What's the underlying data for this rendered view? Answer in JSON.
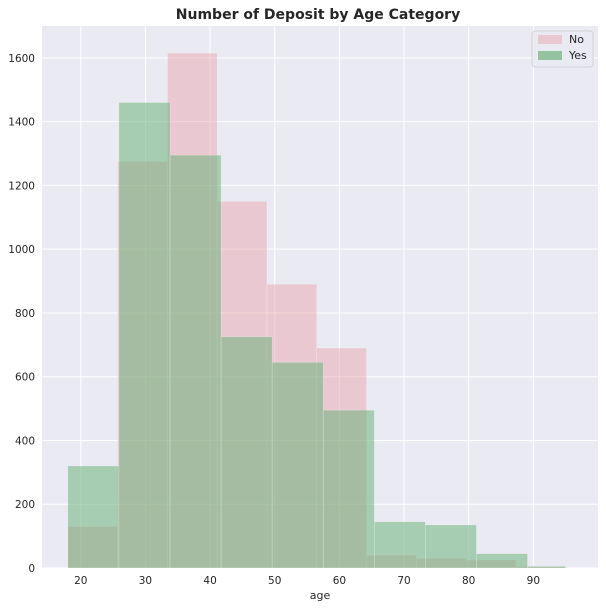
{
  "colors": {
    "background": "#eaeaf2",
    "grid": "#ffffff",
    "no": "#e8a0a8",
    "yes": "#6db27b",
    "text": "#262626"
  },
  "chart_data": {
    "type": "histogram",
    "title": "Number of Deposit by Age Category",
    "xlabel": "age",
    "ylabel": "",
    "xlim": [
      14,
      100
    ],
    "ylim": [
      0,
      1700
    ],
    "grid": true,
    "legend_position": "top-right",
    "x_ticks": [
      20,
      30,
      40,
      50,
      60,
      70,
      80,
      90
    ],
    "y_ticks": [
      0,
      200,
      400,
      600,
      800,
      1000,
      1200,
      1400,
      1600
    ],
    "series": [
      {
        "name": "No",
        "color": "#e8a0a8",
        "opacity": 0.45,
        "bins": [
          {
            "x0": 18.0,
            "x1": 25.7,
            "count": 130
          },
          {
            "x0": 25.7,
            "x1": 33.4,
            "count": 1275
          },
          {
            "x0": 33.4,
            "x1": 41.1,
            "count": 1615
          },
          {
            "x0": 41.1,
            "x1": 48.8,
            "count": 1150
          },
          {
            "x0": 48.8,
            "x1": 56.5,
            "count": 890
          },
          {
            "x0": 56.5,
            "x1": 64.2,
            "count": 690
          },
          {
            "x0": 64.2,
            "x1": 71.9,
            "count": 40
          },
          {
            "x0": 71.9,
            "x1": 79.6,
            "count": 30
          },
          {
            "x0": 79.6,
            "x1": 87.3,
            "count": 25
          },
          {
            "x0": 87.3,
            "x1": 95.0,
            "count": 5
          }
        ]
      },
      {
        "name": "Yes",
        "color": "#6db27b",
        "opacity": 0.55,
        "bins": [
          {
            "x0": 18.0,
            "x1": 25.9,
            "count": 320
          },
          {
            "x0": 25.9,
            "x1": 33.8,
            "count": 1460
          },
          {
            "x0": 33.8,
            "x1": 41.7,
            "count": 1295
          },
          {
            "x0": 41.7,
            "x1": 49.6,
            "count": 725
          },
          {
            "x0": 49.6,
            "x1": 57.5,
            "count": 645
          },
          {
            "x0": 57.5,
            "x1": 65.4,
            "count": 495
          },
          {
            "x0": 65.4,
            "x1": 73.3,
            "count": 145
          },
          {
            "x0": 73.3,
            "x1": 81.2,
            "count": 135
          },
          {
            "x0": 81.2,
            "x1": 89.1,
            "count": 45
          },
          {
            "x0": 89.1,
            "x1": 95.0,
            "count": 5
          }
        ]
      }
    ]
  }
}
